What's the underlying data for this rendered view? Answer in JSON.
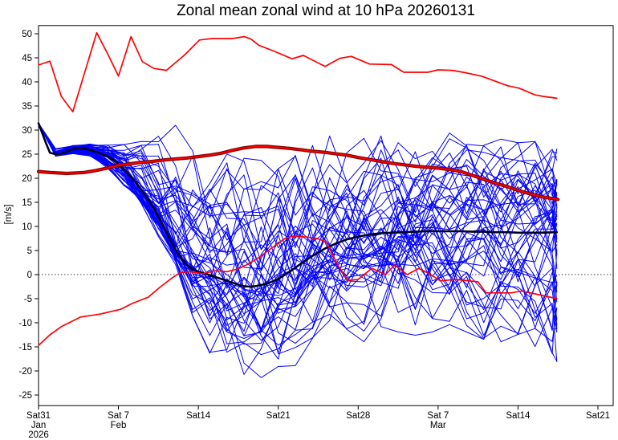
{
  "chart_data": {
    "type": "line",
    "title": "Zonal mean zonal wind at 10 hPa 20260131",
    "ylabel": "[m/s]",
    "ylim": [
      -27.2,
      51.7
    ],
    "xlim_days": [
      0,
      50.3
    ],
    "grid": false,
    "zero_line": true,
    "legend": "none",
    "yticks": [
      -25,
      -20,
      -15,
      -10,
      -5,
      0,
      5,
      10,
      15,
      20,
      25,
      30,
      35,
      40,
      45,
      50
    ],
    "xticks": [
      {
        "day": 0,
        "lines": [
          "Sat31",
          "Jan",
          "2026"
        ]
      },
      {
        "day": 7,
        "lines": [
          "Sat 7",
          "Feb"
        ]
      },
      {
        "day": 14,
        "lines": [
          "Sat14"
        ]
      },
      {
        "day": 21,
        "lines": [
          "Sat21"
        ]
      },
      {
        "day": 28,
        "lines": [
          "Sat28"
        ]
      },
      {
        "day": 35,
        "lines": [
          "Sat 7",
          "Mar"
        ]
      },
      {
        "day": 42,
        "lines": [
          "Sat14"
        ]
      },
      {
        "day": 49,
        "lines": [
          "Sat21"
        ]
      }
    ],
    "colors": {
      "members": "#0000ff",
      "ensemble_mean": "#000022",
      "clim_mean_outer": "#8b0000",
      "clim_mean_core": "#ff0000",
      "clim_envelope": "#ff0000",
      "axis": "#000000"
    },
    "series": {
      "clim_max": {
        "name": "climatology upper envelope",
        "points": [
          [
            0,
            43.5
          ],
          [
            1,
            44.3
          ],
          [
            2,
            37.0
          ],
          [
            3,
            33.8
          ],
          [
            5.1,
            50.2
          ],
          [
            6.1,
            45.6
          ],
          [
            7,
            41.2
          ],
          [
            8.1,
            49.4
          ],
          [
            9.1,
            44.2
          ],
          [
            10.1,
            42.8
          ],
          [
            11.2,
            42.4
          ],
          [
            12.8,
            45.6
          ],
          [
            14.1,
            48.7
          ],
          [
            15.2,
            49.0
          ],
          [
            16.2,
            49.0
          ],
          [
            17,
            49.0
          ],
          [
            18,
            49.4
          ],
          [
            18.6,
            48.9
          ],
          [
            19.3,
            47.6
          ],
          [
            20.5,
            46.5
          ],
          [
            22.2,
            44.8
          ],
          [
            23.2,
            45.5
          ],
          [
            25.1,
            43.2
          ],
          [
            26.4,
            44.9
          ],
          [
            27.4,
            45.3
          ],
          [
            29,
            43.7
          ],
          [
            30.9,
            43.6
          ],
          [
            32,
            42.0
          ],
          [
            34.1,
            42.0
          ],
          [
            35,
            42.5
          ],
          [
            36.2,
            42.4
          ],
          [
            37.2,
            42.0
          ],
          [
            38.8,
            41.2
          ],
          [
            41.1,
            39.2
          ],
          [
            42.1,
            38.7
          ],
          [
            43.5,
            37.3
          ],
          [
            44.2,
            37.0
          ],
          [
            45.4,
            36.6
          ]
        ]
      },
      "clim_min": {
        "name": "climatology lower envelope",
        "points": [
          [
            0,
            -14.7
          ],
          [
            1,
            -12.5
          ],
          [
            2,
            -10.8
          ],
          [
            3.7,
            -8.8
          ],
          [
            5.4,
            -8.2
          ],
          [
            7.2,
            -7.2
          ],
          [
            8.2,
            -6.0
          ],
          [
            9.6,
            -4.7
          ],
          [
            10.7,
            -2.5
          ],
          [
            11.7,
            -0.7
          ],
          [
            12.4,
            0.4
          ],
          [
            13.2,
            0.6
          ],
          [
            14.4,
            0.2
          ],
          [
            15.5,
            0.8
          ],
          [
            16.5,
            0.6
          ],
          [
            17.5,
            1.2
          ],
          [
            18.2,
            2.0
          ],
          [
            19.1,
            3.2
          ],
          [
            20.7,
            6.0
          ],
          [
            21.6,
            7.5
          ],
          [
            22.3,
            8.0
          ],
          [
            23.5,
            7.8
          ],
          [
            24.4,
            7.5
          ],
          [
            25.2,
            6.8
          ],
          [
            26.2,
            2.0
          ],
          [
            27.1,
            -1.2
          ],
          [
            28,
            -1.0
          ],
          [
            29.2,
            1.3
          ],
          [
            30.4,
            0.0
          ],
          [
            31.2,
            2.0
          ],
          [
            32.3,
            0.0
          ],
          [
            33.3,
            1.3
          ],
          [
            34.2,
            0.2
          ],
          [
            35.2,
            -1.3
          ],
          [
            36.5,
            -1.0
          ],
          [
            38.5,
            -1.5
          ],
          [
            39.2,
            -3.8
          ],
          [
            41.4,
            -3.8
          ],
          [
            42.3,
            -3.4
          ],
          [
            43.5,
            -4.0
          ],
          [
            44.5,
            -4.5
          ],
          [
            45.4,
            -5.0
          ]
        ]
      },
      "clim_mean": {
        "name": "climatological mean",
        "points": [
          [
            0,
            21.4
          ],
          [
            1,
            21.2
          ],
          [
            2.5,
            21.0
          ],
          [
            4,
            21.2
          ],
          [
            5,
            21.6
          ],
          [
            6,
            22.1
          ],
          [
            7,
            22.7
          ],
          [
            8,
            23.0
          ],
          [
            9,
            23.3
          ],
          [
            10,
            23.5
          ],
          [
            11,
            23.8
          ],
          [
            12,
            24.0
          ],
          [
            13,
            24.2
          ],
          [
            14,
            24.5
          ],
          [
            15,
            24.8
          ],
          [
            16,
            25.2
          ],
          [
            17,
            25.8
          ],
          [
            18,
            26.3
          ],
          [
            19,
            26.6
          ],
          [
            20,
            26.6
          ],
          [
            21,
            26.4
          ],
          [
            22,
            26.2
          ],
          [
            23,
            25.9
          ],
          [
            24,
            25.6
          ],
          [
            25,
            25.4
          ],
          [
            26,
            25.1
          ],
          [
            27,
            24.8
          ],
          [
            28,
            24.3
          ],
          [
            29,
            23.9
          ],
          [
            30,
            23.5
          ],
          [
            31,
            23.1
          ],
          [
            32,
            22.8
          ],
          [
            33,
            22.5
          ],
          [
            34,
            22.3
          ],
          [
            35,
            22.1
          ],
          [
            36,
            21.8
          ],
          [
            37,
            21.4
          ],
          [
            38,
            20.6
          ],
          [
            39,
            19.8
          ],
          [
            40,
            19.0
          ],
          [
            41,
            18.3
          ],
          [
            42,
            17.5
          ],
          [
            43,
            16.8
          ],
          [
            44,
            16.2
          ],
          [
            45,
            15.8
          ],
          [
            45.5,
            15.6
          ]
        ]
      },
      "ensemble_mean": {
        "name": "ensemble mean",
        "points": [
          [
            0,
            31.4
          ],
          [
            0.7,
            27.0
          ],
          [
            1,
            25.3
          ],
          [
            1.5,
            25.0
          ],
          [
            2,
            25.1
          ],
          [
            3,
            26.0
          ],
          [
            3.5,
            26.3
          ],
          [
            4,
            26.2
          ],
          [
            5,
            25.5
          ],
          [
            6,
            24.6
          ],
          [
            6.5,
            23.9
          ],
          [
            7,
            23.0
          ],
          [
            7.5,
            21.8
          ],
          [
            8,
            20.5
          ],
          [
            8.5,
            19.2
          ],
          [
            9,
            17.7
          ],
          [
            9.5,
            16.0
          ],
          [
            10,
            14.2
          ],
          [
            10.5,
            12.0
          ],
          [
            11,
            9.8
          ],
          [
            11.5,
            7.4
          ],
          [
            12,
            5.2
          ],
          [
            12.5,
            3.4
          ],
          [
            13,
            2.0
          ],
          [
            13.5,
            1.1
          ],
          [
            14,
            0.6
          ],
          [
            15,
            -0.1
          ],
          [
            16,
            -0.9
          ],
          [
            17,
            -1.7
          ],
          [
            17.5,
            -2.1
          ],
          [
            18,
            -2.4
          ],
          [
            18.5,
            -2.5
          ],
          [
            19,
            -2.4
          ],
          [
            20,
            -1.9
          ],
          [
            21,
            -0.9
          ],
          [
            22,
            0.6
          ],
          [
            23,
            2.3
          ],
          [
            24,
            3.9
          ],
          [
            25,
            5.3
          ],
          [
            26,
            6.4
          ],
          [
            27,
            7.3
          ],
          [
            28,
            7.9
          ],
          [
            29,
            8.3
          ],
          [
            30,
            8.6
          ],
          [
            31,
            8.7
          ],
          [
            32,
            8.8
          ],
          [
            33,
            8.9
          ],
          [
            34,
            9.0
          ],
          [
            35,
            9.0
          ],
          [
            36,
            9.0
          ],
          [
            37,
            9.0
          ],
          [
            38,
            8.9
          ],
          [
            39,
            8.9
          ],
          [
            40,
            8.8
          ],
          [
            41,
            8.8
          ],
          [
            42,
            8.7
          ],
          [
            43,
            8.7
          ],
          [
            44,
            8.7
          ],
          [
            45.4,
            8.8
          ]
        ]
      }
    },
    "ensemble": {
      "count": 50,
      "seed": 20260131,
      "knot_step_days": 1.5,
      "end_day": 45.4,
      "envelope_days_step": 1,
      "envelope_top": [
        31.4,
        26.0,
        26.2,
        27.0,
        27.2,
        27.0,
        27.0,
        26.8,
        27.0,
        28.0,
        28.5,
        29.5,
        30.5,
        27.5,
        24.5,
        22.5,
        24.0,
        25.0,
        26.0,
        25.0,
        26.0,
        27.0,
        28.0,
        28.5,
        28.0,
        29.0,
        30.5,
        29.0,
        28.0,
        28.5,
        30.0,
        28.0,
        27.5,
        28.0,
        27.0,
        28.0,
        29.0,
        28.0,
        27.5,
        27.0,
        27.5,
        28.0,
        27.0,
        27.5,
        27.0,
        27.5
      ],
      "envelope_bottom": [
        31.4,
        24.5,
        24.3,
        25.0,
        25.0,
        24.0,
        22.0,
        20.0,
        17.0,
        14.0,
        10.0,
        6.0,
        2.0,
        -5.0,
        -12.0,
        -16.0,
        -19.0,
        -21.0,
        -21.5,
        -20.0,
        -22.0,
        -25.0,
        -20.0,
        -17.0,
        -15.0,
        -14.0,
        -13.0,
        -12.0,
        -13.0,
        -14.0,
        -12.0,
        -11.0,
        -12.0,
        -13.0,
        -12.0,
        -11.0,
        -10.0,
        -11.0,
        -12.0,
        -13.0,
        -14.0,
        -13.0,
        -12.0,
        -14.0,
        -16.0,
        -17.5
      ]
    }
  }
}
